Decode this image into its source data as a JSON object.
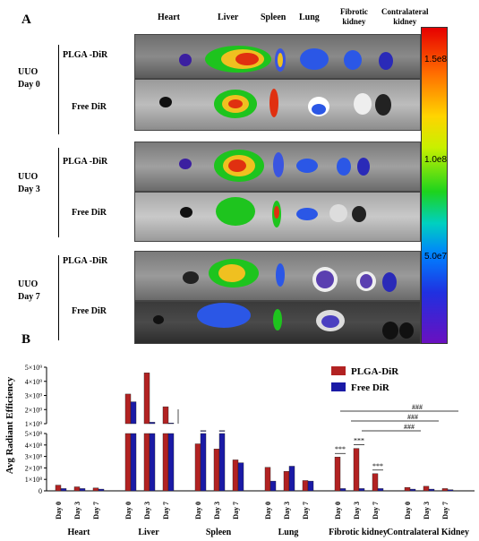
{
  "panel_a": {
    "letter": "A",
    "organs": [
      "Heart",
      "Liver",
      "Spleen",
      "Lung",
      "Fibrotic\nkidney",
      "Contralateral\nkidney"
    ],
    "groups": [
      {
        "label_line1": "UUO",
        "label_line2": "Day 0"
      },
      {
        "label_line1": "UUO",
        "label_line2": "Day 3"
      },
      {
        "label_line1": "UUO",
        "label_line2": "Day 7"
      }
    ],
    "row_labels": {
      "plga": "PLGA -DiR",
      "free": "Free DiR"
    },
    "colorbar_ticks": [
      "1.5e8",
      "1.0e8",
      "5.0e7"
    ]
  },
  "panel_b": {
    "letter": "B",
    "legend": [
      {
        "label": "PLGA-DiR",
        "color": "#b22222"
      },
      {
        "label": "Free DiR",
        "color": "#1a1aa6"
      }
    ],
    "significance": {
      "star": "***",
      "hash": "###"
    }
  },
  "chart_data": {
    "type": "bar",
    "ylabel": "Avg Radiant Efficiency",
    "broken_axis": true,
    "ylim_lower": [
      0,
      500000000
    ],
    "ylim_upper": [
      1000000000,
      5000000000
    ],
    "yticks_lower": [
      "0",
      "1×10⁸",
      "2×10⁸",
      "3×10⁸",
      "4×10⁸",
      "5×10⁸"
    ],
    "yticks_upper": [
      "1×10⁹",
      "2×10⁹",
      "3×10⁹",
      "4×10⁹",
      "5×10⁹"
    ],
    "organs": [
      "Heart",
      "Liver",
      "Spleen",
      "Lung",
      "Fibrotic kidney",
      "Contralateral Kidney"
    ],
    "days": [
      "Day 0",
      "Day 3",
      "Day 7"
    ],
    "series": [
      {
        "name": "PLGA-DiR",
        "values": [
          [
            50000000,
            35000000,
            25000000
          ],
          [
            3100000000,
            4600000000,
            2200000000
          ],
          [
            410000000,
            365000000,
            270000000
          ],
          [
            205000000,
            170000000,
            90000000
          ],
          [
            295000000,
            370000000,
            150000000
          ],
          [
            30000000,
            40000000,
            20000000
          ]
        ]
      },
      {
        "name": "Free DiR",
        "values": [
          [
            20000000,
            20000000,
            15000000
          ],
          [
            2550000000,
            1100000000,
            1050000000
          ],
          [
            510000000,
            510000000,
            245000000
          ],
          [
            85000000,
            215000000,
            85000000
          ],
          [
            20000000,
            20000000,
            20000000
          ],
          [
            15000000,
            15000000,
            10000000
          ]
        ]
      }
    ]
  }
}
